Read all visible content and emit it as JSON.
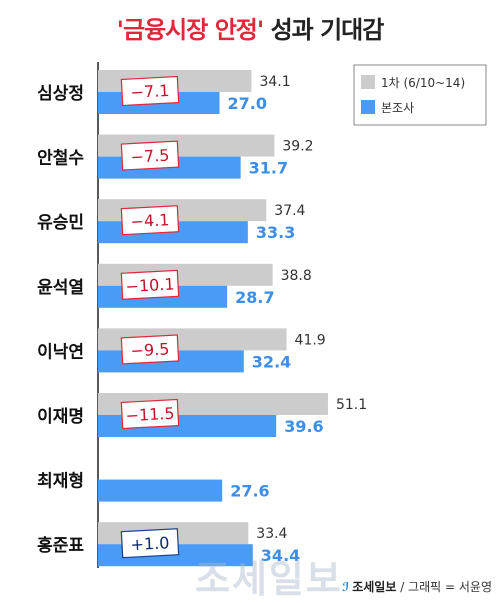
{
  "title": {
    "highlight": "'금융시장 안정'",
    "rest": "성과 기대감"
  },
  "legend": {
    "prev": "1차 (6/10~14)",
    "curr": "본조사"
  },
  "colors": {
    "prev": "#cccccc",
    "curr": "#4a9bf5",
    "neg": "#e0283a",
    "pos": "#1b3f95",
    "currText": "#3d8ee8"
  },
  "chart_data": {
    "type": "bar",
    "orientation": "horizontal",
    "categories": [
      "심상정",
      "안철수",
      "유승민",
      "윤석열",
      "이낙연",
      "이재명",
      "최재형",
      "홍준표"
    ],
    "series": [
      {
        "name": "1차 (6/10~14)",
        "values": [
          34.1,
          39.2,
          37.4,
          38.8,
          41.9,
          51.1,
          null,
          33.4
        ]
      },
      {
        "name": "본조사",
        "values": [
          27.0,
          31.7,
          33.3,
          28.7,
          32.4,
          39.6,
          27.6,
          34.4
        ]
      }
    ],
    "changes": [
      "-7.1",
      "-7.5",
      "-4.1",
      "-10.1",
      "-9.5",
      "-11.5",
      null,
      "+1.0"
    ],
    "prev_labels": [
      "34.1",
      "39.2",
      "37.4",
      "38.8",
      "41.9",
      "51.1",
      null,
      "33.4"
    ],
    "curr_labels": [
      "27.0",
      "31.7",
      "33.3",
      "28.7",
      "32.4",
      "39.6",
      "27.6",
      "34.4"
    ],
    "legend_position": "top-right",
    "grid": false
  },
  "footer": {
    "logo": "조세일보",
    "credit": "/ 그래픽 = 서윤영"
  },
  "watermark": "조세일보"
}
